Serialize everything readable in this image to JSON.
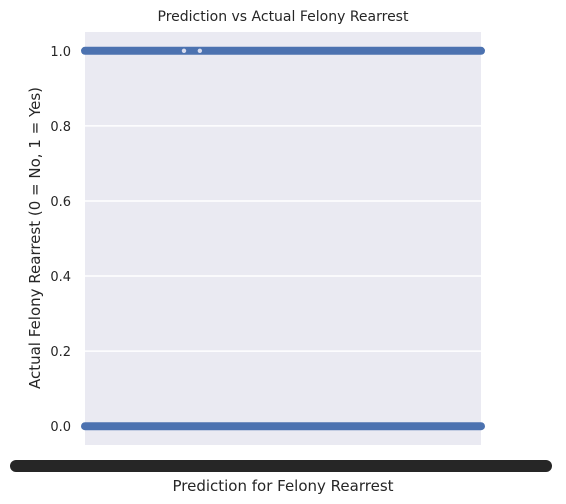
{
  "chart_data": {
    "type": "scatter",
    "title": "Prediction vs Actual Felony Rearrest",
    "xlabel": "Prediction for Felony Rearrest",
    "ylabel": "Actual Felony Rearrest (0 = No, 1 = Yes)",
    "ylim": [
      -0.05,
      1.05
    ],
    "y_ticks": [
      "0.0",
      "0.2",
      "0.4",
      "0.6",
      "0.8",
      "1.0"
    ],
    "y_tick_values": [
      0.0,
      0.2,
      0.4,
      0.6,
      0.8,
      1.0
    ],
    "x_tick_labels": "overlapping categorical labels (illegible)",
    "grid": true,
    "background": "#eaeaf2",
    "series": [
      {
        "values_y": [
          0,
          1
        ],
        "coverage": [
          {
            "y": 1.0,
            "x_from": 0.0,
            "x_to": 1.0,
            "gaps": [
              0.25,
              0.29
            ]
          },
          {
            "y": 0.0,
            "x_from": 0.0,
            "x_to": 1.0,
            "gaps": []
          }
        ],
        "color": "#4c72b0"
      }
    ]
  }
}
